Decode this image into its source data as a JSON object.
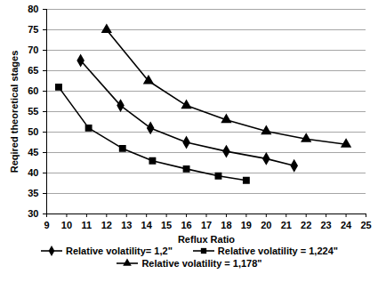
{
  "chart_data": {
    "type": "line",
    "x_label": "Reflux Ratio",
    "y_label": "Reqired theoretical stages",
    "xlim": [
      9,
      25
    ],
    "xticks": [
      9,
      10,
      11,
      12,
      13,
      14,
      15,
      16,
      17,
      18,
      19,
      20,
      21,
      22,
      23,
      24,
      25
    ],
    "ylim": [
      30,
      80
    ],
    "yticks": [
      30,
      35,
      40,
      45,
      50,
      55,
      60,
      65,
      70,
      75,
      80
    ],
    "grid": true,
    "legend": "bottom",
    "series": [
      {
        "name": "Relative volatility= 1,2\"",
        "color": "#000000",
        "marker": "diamond",
        "line_style": "solid",
        "x": [
          10.7,
          12.7,
          14.2,
          16,
          18,
          20,
          21.4
        ],
        "values": [
          67.5,
          56.5,
          51,
          47.5,
          45.3,
          43.5,
          41.8
        ]
      },
      {
        "name": "Relative volatility = 1,224\"",
        "color": "#000000",
        "marker": "square",
        "line_style": "solid",
        "x": [
          9.6,
          11.1,
          12.8,
          14.3,
          16,
          17.6,
          19
        ],
        "values": [
          61,
          51,
          46,
          43,
          41,
          39.3,
          38.2
        ]
      },
      {
        "name": "Relative volatility = 1,178\"",
        "color": "#000000",
        "marker": "triangle",
        "line_style": "solid",
        "x": [
          12,
          14.1,
          16,
          18,
          20,
          22,
          24
        ],
        "values": [
          75,
          62.5,
          56.5,
          53,
          50.2,
          48.3,
          47
        ]
      }
    ]
  }
}
